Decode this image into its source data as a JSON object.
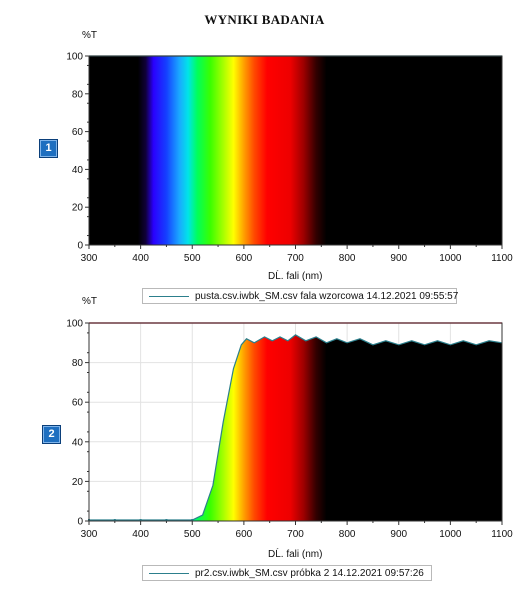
{
  "page_title": "WYNIKI BADANIA",
  "chart_data": [
    {
      "type": "area",
      "badge": "1",
      "y_unit": "%T",
      "xlabel": "DĹ. fali (nm)",
      "ylabel": "%T",
      "xlim": [
        300,
        1100
      ],
      "ylim": [
        0,
        100
      ],
      "xticks": [
        300,
        400,
        500,
        600,
        700,
        800,
        900,
        1000,
        1100
      ],
      "yticks": [
        0,
        20,
        40,
        60,
        80,
        100
      ],
      "grid": false,
      "legend_position": "bottom",
      "fill": "visible spectrum colours",
      "series": [
        {
          "name": "pusta.csv.iwbk_SM.csv  fala wzorcowa  14.12.2021 09:55:57",
          "color": "#2c7f8c",
          "x": [
            300,
            1100
          ],
          "y": [
            100,
            100
          ]
        }
      ]
    },
    {
      "type": "area",
      "badge": "2",
      "y_unit": "%T",
      "xlabel": "DĹ. fali (nm)",
      "ylabel": "%T",
      "xlim": [
        300,
        1100
      ],
      "ylim": [
        0,
        100
      ],
      "xticks": [
        300,
        400,
        500,
        600,
        700,
        800,
        900,
        1000,
        1100
      ],
      "yticks": [
        0,
        20,
        40,
        60,
        80,
        100
      ],
      "grid": true,
      "legend_position": "bottom",
      "reference_line": {
        "y": 100,
        "color": "#d9475a"
      },
      "fill": "visible spectrum colours",
      "series": [
        {
          "name": "pr2.csv.iwbk_SM.csv  próbka 2 14.12.2021 09:57:26",
          "color": "#2c7f8c",
          "x": [
            300,
            350,
            400,
            450,
            500,
            520,
            540,
            560,
            580,
            595,
            605,
            620,
            640,
            655,
            670,
            685,
            700,
            720,
            740,
            760,
            780,
            800,
            825,
            850,
            875,
            900,
            925,
            950,
            975,
            1000,
            1025,
            1050,
            1075,
            1100
          ],
          "y": [
            0.5,
            0.5,
            0.5,
            0.5,
            0.5,
            3,
            18,
            50,
            77,
            89,
            92,
            90,
            93,
            91,
            93,
            91,
            94,
            91,
            93,
            90,
            92,
            90,
            92,
            89,
            91,
            89,
            91,
            89,
            91,
            89,
            91,
            89,
            91,
            90
          ]
        }
      ]
    }
  ]
}
